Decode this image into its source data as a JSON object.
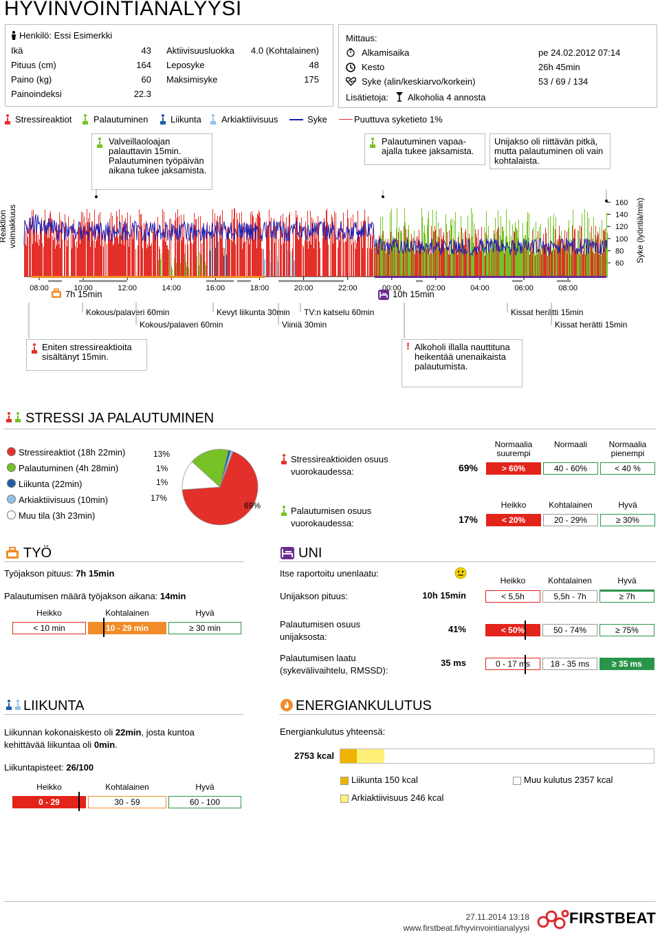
{
  "title": "HYVINVOINTIANALYYSI",
  "person": {
    "name": "Henkilö: Essi Esimerkki",
    "rows": [
      {
        "label": "Ikä",
        "value": "43"
      },
      {
        "label": "Pituus (cm)",
        "value": "164"
      },
      {
        "label": "Paino (kg)",
        "value": "60"
      },
      {
        "label": "Painoindeksi",
        "value": "22.3"
      }
    ],
    "rows2": [
      {
        "label": "Aktiivisuusluokka",
        "value": "4.0 (Kohtalainen)"
      },
      {
        "label": "Leposyke",
        "value": "48"
      },
      {
        "label": "Maksimisyke",
        "value": "175"
      }
    ]
  },
  "measurement": {
    "heading": "Mittaus:",
    "rows": [
      {
        "label": "Alkamisaika",
        "value": "pe 24.02.2012 07:14",
        "icon": "stopwatch-icon"
      },
      {
        "label": "Kesto",
        "value": "26h 45min",
        "icon": "clock-icon"
      },
      {
        "label": "Syke (alin/keskiarvo/korkein)",
        "value": "53 / 69 / 134",
        "icon": "heart-icon"
      }
    ],
    "extra_label": "Lisätietoja:",
    "extra_value": "Alkoholia 4 annosta"
  },
  "legend": {
    "stress": "Stressireaktiot",
    "recovery": "Palautuminen",
    "exercise": "Liikunta",
    "activity": "Arkiaktiivisuus",
    "hr": "Syke",
    "missing": "Puuttuva syketieto 1%"
  },
  "colors": {
    "stress": "#e3302a",
    "recovery": "#76c226",
    "exercise": "#1f5fa8",
    "activity": "#8ec2ec",
    "hr": "#1c1cb0",
    "work": "#f28c28",
    "sleep": "#6a2c8f",
    "good": "#29954a",
    "bad": "#e3241b"
  },
  "callouts": {
    "c1": "Valveillaoloajan palauttavin 15min. Palautuminen työpäivän aikana tukee jaksamista.",
    "c2": "Palautuminen vapaa-ajalla tukee jaksamista.",
    "c3": "Unijakso oli riittävän pitkä, mutta palautuminen oli vain kohtalaista.",
    "c4": "Eniten stressireaktioita sisältänyt 15min.",
    "c5": "Alkoholi illalla nauttituna heikentää unenaikaista palautumista."
  },
  "chart_data": {
    "type": "area",
    "ylabel_left": "Reaktion voimakkuus",
    "ylabel_right": "Syke (lyöntiä/min)",
    "y_ticks": [
      "160",
      "140",
      "120",
      "100",
      "80",
      "60"
    ],
    "x_ticks": [
      "08:00",
      "10:00",
      "12:00",
      "14:00",
      "16:00",
      "18:00",
      "20:00",
      "22:00",
      "00:00",
      "02:00",
      "04:00",
      "06:00",
      "08:00"
    ],
    "work_period": "7h 15min",
    "sleep_period": "10h 15min",
    "events": [
      "Kokous/palaveri 60min",
      "Kokous/palaveri 60min",
      "Kevyt liikunta 30min",
      "Viiniä 30min",
      "TV:n katselu 60min",
      "Kissat herätti 15min",
      "Kissat herätti 15min"
    ],
    "hr_range": [
      53,
      134
    ],
    "missing_percent": 1
  },
  "stress_section": {
    "title": "STRESSI JA PALAUTUMINEN",
    "items": [
      {
        "label": "Stressireaktiot (18h 22min)",
        "color": "#e3302a",
        "pct": "69%"
      },
      {
        "label": "Palautuminen (4h 28min)",
        "color": "#76c226",
        "pct": "17%"
      },
      {
        "label": "Liikunta (22min)",
        "color": "#1f5fa8",
        "pct": "1%"
      },
      {
        "label": "Arkiaktiivisuus (10min)",
        "color": "#8ec2ec",
        "pct": "1%"
      },
      {
        "label": "Muu tila (3h 23min)",
        "color": "#ffffff",
        "pct": "13%"
      }
    ],
    "pie_values": [
      69,
      17,
      1,
      1,
      13
    ],
    "stress_share_label": "Stressireaktioiden osuus vuorokaudessa:",
    "stress_share_value": "69%",
    "recovery_share_label": "Palautumisen osuus vuorokaudessa:",
    "recovery_share_value": "17%",
    "stress_scale_heads": [
      "Normaalia suurempi",
      "Normaali",
      "Normaalia pienempi"
    ],
    "stress_scale": [
      "> 60%",
      "40 - 60%",
      "< 40 %"
    ],
    "recovery_scale_heads": [
      "Heikko",
      "Kohtalainen",
      "Hyvä"
    ],
    "recovery_scale": [
      "< 20%",
      "20 - 29%",
      "≥ 30%"
    ]
  },
  "work": {
    "title": "TYÖ",
    "length_label": "Työjakson pituus: ",
    "length_value": "7h 15min",
    "recovery_label": "Palautumisen määrä työjakson aikana: ",
    "recovery_value": "14min",
    "heads": [
      "Heikko",
      "Kohtalainen",
      "Hyvä"
    ],
    "scale": [
      "< 10 min",
      "10 - 29 min",
      "≥ 30 min"
    ]
  },
  "sleep": {
    "title": "UNI",
    "quality_label": "Itse raportoitu unenlaatu:",
    "heads": [
      "Heikko",
      "Kohtalainen",
      "Hyvä"
    ],
    "rows": [
      {
        "label": "Unijakson pituus:",
        "value": "10h 15min",
        "scale": [
          "< 5,5h",
          "5,5h - 7h",
          "≥ 7h"
        ]
      },
      {
        "label": "Palautumisen osuus unijaksosta:",
        "value": "41%",
        "scale": [
          "< 50%",
          "50 - 74%",
          "≥ 75%"
        ]
      },
      {
        "label": "Palautumisen laatu (sykevälivaihtelu, RMSSD):",
        "value": "35 ms",
        "scale": [
          "0 - 17 ms",
          "18 - 35 ms",
          "≥ 35 ms"
        ]
      }
    ]
  },
  "exercise": {
    "title": "LIIKUNTA",
    "line1": "Liikunnan kokonaiskesto oli ",
    "line1_value": "22min",
    "line1b": ", josta kuntoa",
    "line2": "kehittävää liikuntaa oli ",
    "line2_value": "0min",
    "line2_end": ".",
    "points_label": "Liikuntapisteet: ",
    "points_value": "26/100",
    "heads": [
      "Heikko",
      "Kohtalainen",
      "Hyvä"
    ],
    "scale": [
      "0 - 29",
      "30 - 59",
      "60 - 100"
    ]
  },
  "energy": {
    "title": "ENERGIANKULUTUS",
    "total_label": "Energiankulutus yhteensä:",
    "total_value": "2753 kcal",
    "items": [
      {
        "label": "Liikunta 150 kcal",
        "color": "#f0b400"
      },
      {
        "label": "Muu kulutus 2357 kcal",
        "color": "#ffffff"
      },
      {
        "label": "Arkiaktiivisuus 246 kcal",
        "color": "#fff07a"
      }
    ]
  },
  "footer": {
    "date": "27.11.2014 13:18",
    "url": "www.firstbeat.fi/hyvinvointianalyysi",
    "brand": "FIRSTBEAT"
  }
}
